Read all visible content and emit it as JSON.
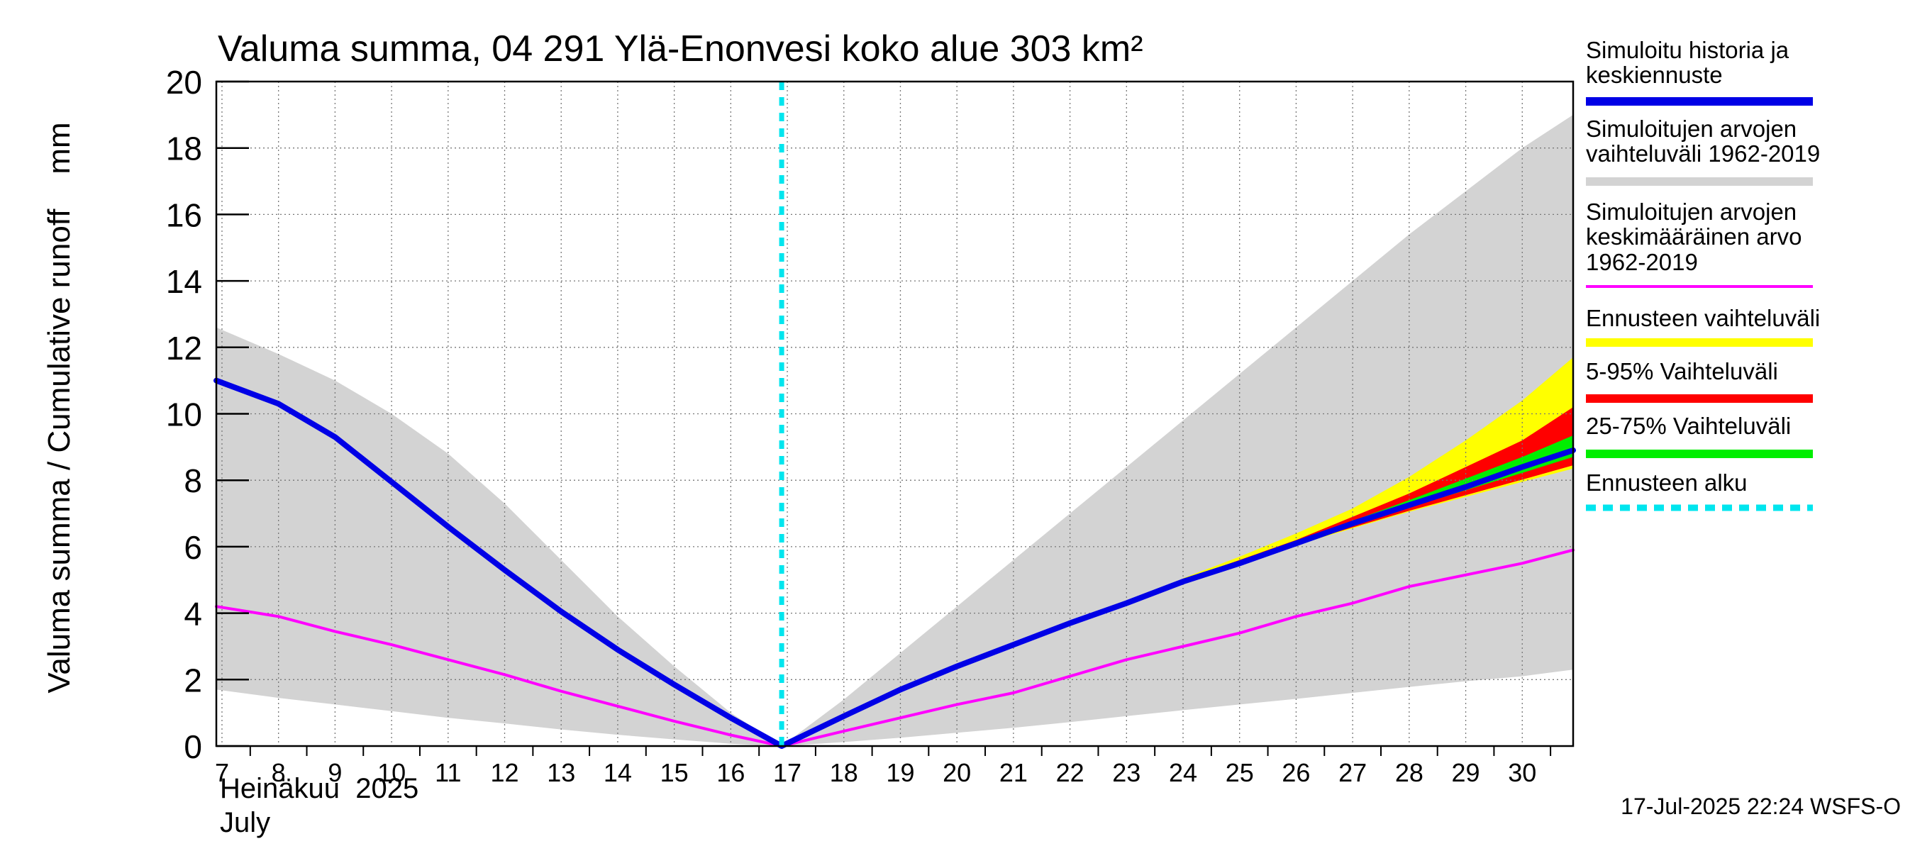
{
  "chart_data": {
    "type": "area",
    "title": "Valuma summa, 04 291 Ylä-Enonvesi koko alue 303 km²",
    "ylabel": "Valuma summa / Cumulative runoff    mm",
    "xlabel_line1": "Heinäkuu  2025",
    "xlabel_line2": "July",
    "timestamp": "17-Jul-2025 22:24 WSFS-O",
    "ylim": [
      0,
      20
    ],
    "xlim": [
      6.9,
      30.9
    ],
    "yticks": [
      0,
      2,
      4,
      6,
      8,
      10,
      12,
      14,
      16,
      18,
      20
    ],
    "xticks": [
      "7",
      "8",
      "9",
      "10",
      "11",
      "12",
      "13",
      "14",
      "15",
      "16",
      "17",
      "18",
      "19",
      "20",
      "21",
      "22",
      "23",
      "24",
      "25",
      "26",
      "27",
      "28",
      "29",
      "30"
    ],
    "grid": true,
    "forecast_start": 16.9,
    "legend": {
      "placement": "right",
      "items": [
        {
          "name": "Simuloitu historia ja keskiennuste",
          "lines": [
            "Simuloitu historia ja",
            "keskiennuste"
          ],
          "color": "#0000e6",
          "style": "solid"
        },
        {
          "name": "Simuloitujen arvojen vaihteluväli 1962-2019",
          "lines": [
            "Simuloitujen arvojen",
            "vaihteluväli 1962-2019"
          ],
          "color": "#d3d3d3",
          "style": "solid"
        },
        {
          "name": "Simuloitujen arvojen keskimääräinen arvo 1962-2019",
          "lines": [
            "Simuloitujen arvojen",
            "keskimääräinen arvo",
            "   1962-2019"
          ],
          "color": "#ff00ff",
          "style": "thin"
        },
        {
          "name": "Ennusteen vaihteluväli",
          "lines": [
            "Ennusteen vaihteluväli"
          ],
          "color": "#ffff00",
          "style": "solid"
        },
        {
          "name": "5-95% Vaihteluväli",
          "lines": [
            "5-95% Vaihteluväli"
          ],
          "color": "#ff0000",
          "style": "solid"
        },
        {
          "name": "25-75% Vaihteluväli",
          "lines": [
            "25-75% Vaihteluväli"
          ],
          "color": "#00ee00",
          "style": "solid"
        },
        {
          "name": "Ennusteen alku",
          "lines": [
            "Ennusteen alku"
          ],
          "color": "#00e5ee",
          "style": "dashed"
        }
      ]
    },
    "series": [
      {
        "name": "Simuloitujen arvojen vaihteluväli 1962-2019 (upper)",
        "x": [
          6.9,
          8,
          9,
          10,
          11,
          12,
          13,
          14,
          15,
          16,
          16.9,
          18,
          19,
          20,
          21,
          22,
          23,
          24,
          25,
          26,
          27,
          28,
          29,
          30,
          30.9
        ],
        "values": [
          12.6,
          11.8,
          11.0,
          10.0,
          8.8,
          7.3,
          5.6,
          3.9,
          2.4,
          1.0,
          0.0,
          1.4,
          2.8,
          4.2,
          5.6,
          7.0,
          8.4,
          9.8,
          11.2,
          12.6,
          14.0,
          15.4,
          16.7,
          18.0,
          19.0
        ]
      },
      {
        "name": "Simuloitujen arvojen vaihteluväli 1962-2019 (lower)",
        "x": [
          6.9,
          8,
          9,
          10,
          11,
          12,
          13,
          14,
          15,
          16,
          16.9,
          18,
          19,
          20,
          21,
          22,
          23,
          24,
          25,
          26,
          27,
          28,
          29,
          30,
          30.9
        ],
        "values": [
          1.7,
          1.45,
          1.25,
          1.05,
          0.85,
          0.68,
          0.5,
          0.34,
          0.2,
          0.07,
          0.0,
          0.12,
          0.25,
          0.4,
          0.55,
          0.72,
          0.9,
          1.08,
          1.25,
          1.42,
          1.6,
          1.78,
          1.95,
          2.1,
          2.3
        ]
      },
      {
        "name": "Simuloitujen arvojen keskimääräinen arvo 1962-2019",
        "x": [
          6.9,
          8,
          9,
          10,
          11,
          12,
          13,
          14,
          15,
          16,
          16.9,
          18,
          19,
          20,
          21,
          22,
          23,
          24,
          25,
          26,
          27,
          28,
          29,
          30,
          30.9
        ],
        "values": [
          4.2,
          3.9,
          3.45,
          3.05,
          2.6,
          2.15,
          1.65,
          1.2,
          0.75,
          0.33,
          0.0,
          0.45,
          0.85,
          1.25,
          1.6,
          2.1,
          2.6,
          3.0,
          3.4,
          3.9,
          4.3,
          4.8,
          5.15,
          5.5,
          5.9
        ]
      },
      {
        "name": "Ennusteen vaihteluväli (upper)",
        "x": [
          24,
          25,
          26,
          27,
          28,
          29,
          30,
          30.9
        ],
        "values": [
          5.05,
          5.7,
          6.4,
          7.15,
          8.1,
          9.2,
          10.4,
          11.7
        ]
      },
      {
        "name": "Ennusteen vaihteluväli (lower)",
        "x": [
          24,
          25,
          26,
          27,
          28,
          29,
          30,
          30.9
        ],
        "values": [
          4.95,
          5.5,
          6.05,
          6.55,
          7.05,
          7.5,
          7.95,
          8.35
        ]
      },
      {
        "name": "5-95% Vaihteluväli (upper)",
        "x": [
          24,
          25,
          26,
          27,
          28,
          29,
          30,
          30.9
        ],
        "values": [
          5.0,
          5.6,
          6.2,
          6.9,
          7.6,
          8.4,
          9.2,
          10.2
        ]
      },
      {
        "name": "5-95% Vaihteluväli (lower)",
        "x": [
          24,
          25,
          26,
          27,
          28,
          29,
          30,
          30.9
        ],
        "values": [
          4.97,
          5.52,
          6.07,
          6.58,
          7.08,
          7.55,
          8.02,
          8.45
        ]
      },
      {
        "name": "25-75% Vaihteluväli (upper)",
        "x": [
          24,
          25,
          26,
          27,
          28,
          29,
          30,
          30.9
        ],
        "values": [
          4.99,
          5.57,
          6.15,
          6.78,
          7.4,
          8.05,
          8.7,
          9.35
        ]
      },
      {
        "name": "25-75% Vaihteluväli (lower)",
        "x": [
          24,
          25,
          26,
          27,
          28,
          29,
          30,
          30.9
        ],
        "values": [
          4.98,
          5.54,
          6.1,
          6.65,
          7.18,
          7.7,
          8.22,
          8.7
        ]
      },
      {
        "name": "Simuloitu historia ja keskiennuste",
        "x": [
          6.9,
          8,
          9,
          10,
          11,
          12,
          13,
          14,
          15,
          16,
          16.9,
          18,
          19,
          20,
          21,
          22,
          23,
          24,
          25,
          26,
          27,
          28,
          29,
          30,
          30.9
        ],
        "values": [
          11.0,
          10.3,
          9.3,
          7.95,
          6.6,
          5.3,
          4.05,
          2.9,
          1.85,
          0.85,
          0.0,
          0.9,
          1.7,
          2.4,
          3.05,
          3.7,
          4.3,
          4.95,
          5.5,
          6.1,
          6.7,
          7.25,
          7.8,
          8.4,
          8.9
        ]
      }
    ]
  }
}
